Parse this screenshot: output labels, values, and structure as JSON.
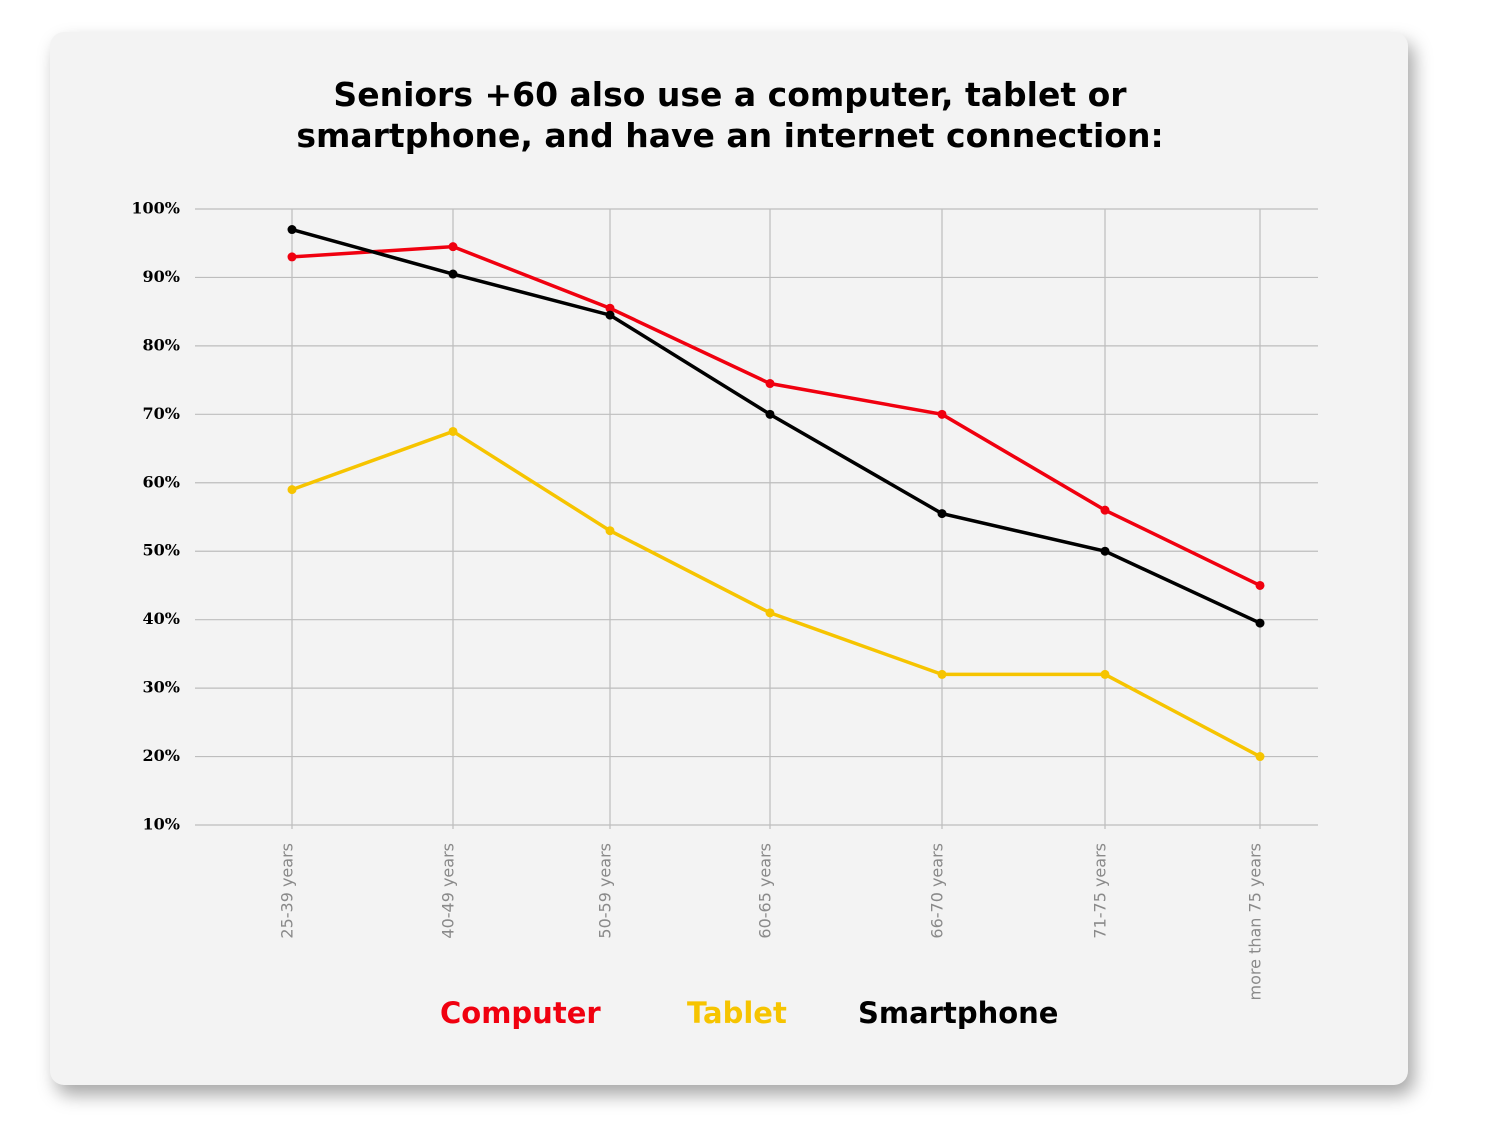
{
  "chart_data": {
    "type": "line",
    "title": "Seniors +60 also use a computer, tablet or smartphone, and have an internet connection:",
    "categories": [
      "25-39 years",
      "40-49 years",
      "50-59 years",
      "60-65 years",
      "66-70 years",
      "71-75  years",
      "more than 75  years"
    ],
    "series": [
      {
        "name": "Computer",
        "color": "#f0000f",
        "values": [
          93,
          94.5,
          85.5,
          74.5,
          70,
          56,
          45
        ]
      },
      {
        "name": "Tablet",
        "color": "#f6c400",
        "values": [
          59,
          67.5,
          53,
          41,
          32,
          32,
          20
        ]
      },
      {
        "name": "Smartphone",
        "color": "#000000",
        "values": [
          97,
          90.5,
          84.5,
          70,
          55.5,
          50,
          39.5
        ]
      }
    ],
    "ylim": [
      10,
      100
    ],
    "yticks": [
      {
        "value": 10,
        "label": "10%"
      },
      {
        "value": 20,
        "label": "20%"
      },
      {
        "value": 30,
        "label": "30%"
      },
      {
        "value": 40,
        "label": "40%"
      },
      {
        "value": 50,
        "label": "50%"
      },
      {
        "value": 60,
        "label": "60%"
      },
      {
        "value": 70,
        "label": "70%"
      },
      {
        "value": 80,
        "label": "80%"
      },
      {
        "value": 90,
        "label": "90%"
      },
      {
        "value": 100,
        "label": "100%"
      }
    ],
    "grid": true
  }
}
